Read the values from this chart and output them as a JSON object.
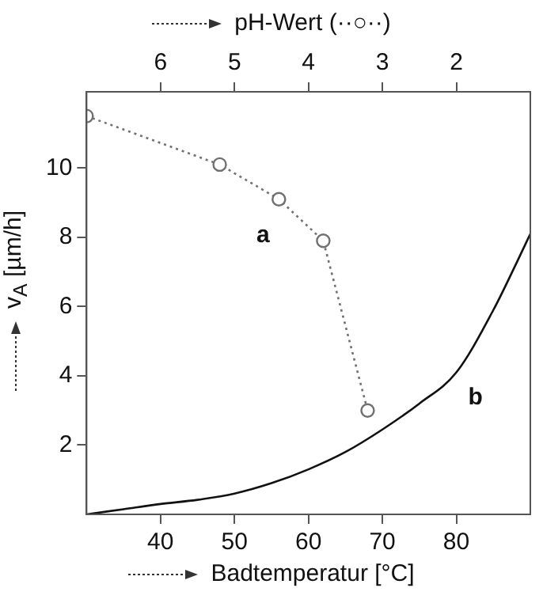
{
  "chart_data": {
    "type": "line",
    "xlabel": "Badtemperatur [°C]",
    "ylabel": "v$_{A}$ [µm/h]",
    "x2label": "pH-Wert (··○··)",
    "xlim": [
      30,
      90
    ],
    "xticks": [
      40,
      50,
      60,
      70,
      80
    ],
    "x2lim": [
      7,
      1
    ],
    "x2ticks": [
      6,
      5,
      4,
      3,
      2
    ],
    "ylim": [
      0,
      12.2
    ],
    "yticks": [
      2,
      4,
      6,
      8,
      10
    ],
    "grid": false,
    "legend": false,
    "series": [
      {
        "name": "a",
        "axis": "x2",
        "color": "#707070",
        "marker": "circle",
        "line_style": "dotted",
        "x": [
          7,
          5.2,
          4.4,
          3.8,
          3.2
        ],
        "values": [
          11.5,
          10.1,
          9.1,
          7.9,
          3.0
        ]
      },
      {
        "name": "b",
        "color": "#111111",
        "marker": "none",
        "line_style": "solid",
        "x": [
          30,
          35,
          40,
          45,
          50,
          55,
          60,
          65,
          70,
          75,
          80,
          85,
          88,
          90
        ],
        "values": [
          0,
          0.15,
          0.3,
          0.42,
          0.6,
          0.9,
          1.3,
          1.8,
          2.45,
          3.2,
          4.1,
          5.9,
          7.2,
          8.1
        ]
      }
    ]
  }
}
